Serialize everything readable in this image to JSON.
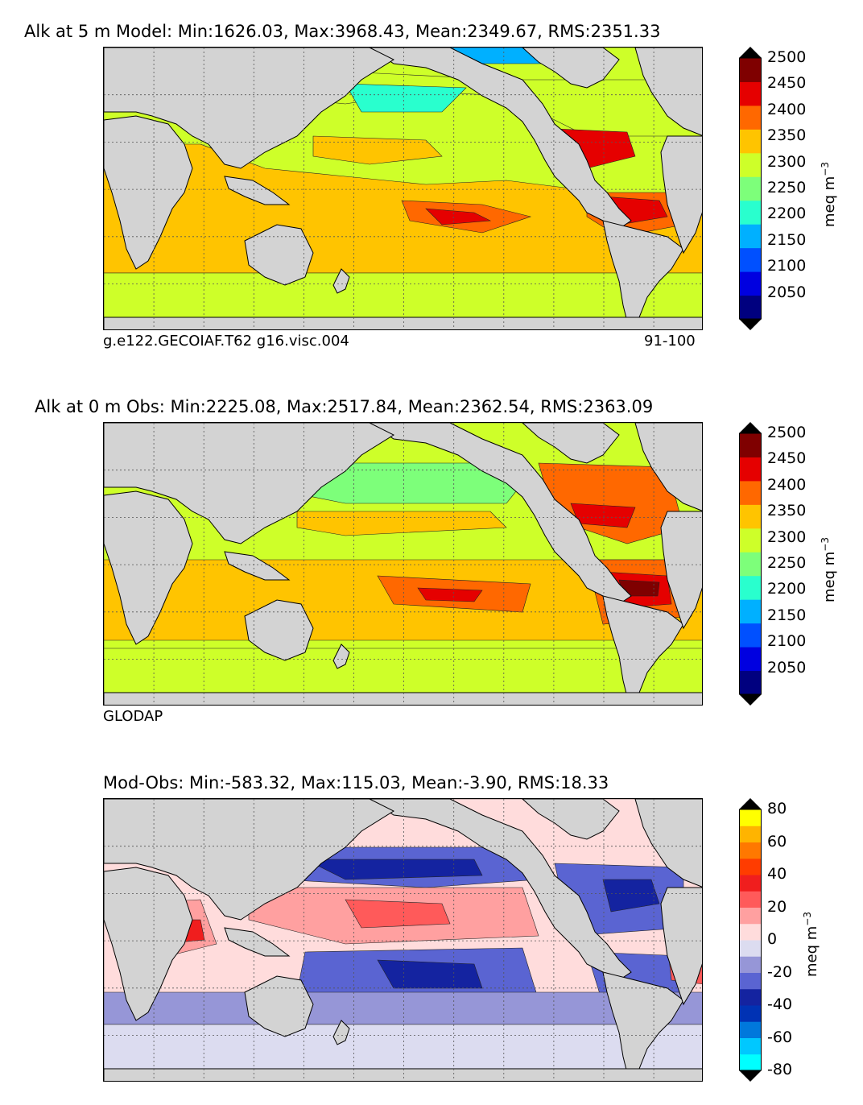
{
  "chart_data": [
    {
      "type": "heatmap",
      "title": "Alk at 5 m Model: Min:1626.03, Max:3968.43, Mean:2349.67, RMS:2351.33",
      "subtitle_left": "g.e122.GECOIAF.T62 g16.visc.004",
      "subtitle_right": "91-100",
      "colorbar": {
        "ticks": [
          "2500",
          "2450",
          "2400",
          "2350",
          "2300",
          "2250",
          "2200",
          "2150",
          "2100",
          "2050"
        ],
        "levels": [
          2000,
          2050,
          2100,
          2150,
          2200,
          2250,
          2300,
          2350,
          2400,
          2450,
          2500
        ],
        "colors": [
          "#00007f",
          "#0000e0",
          "#0050ff",
          "#00b0ff",
          "#29ffce",
          "#7dff7a",
          "#ceff29",
          "#ffc400",
          "#ff6800",
          "#e50000",
          "#7f0000"
        ],
        "unit": "meq m",
        "unit_exp": "−3"
      }
    },
    {
      "type": "heatmap",
      "title": "Alk at 0 m Obs: Min:2225.08, Max:2517.84, Mean:2362.54, RMS:2363.09",
      "subtitle_left": "GLODAP",
      "colorbar": {
        "ticks": [
          "2500",
          "2450",
          "2400",
          "2350",
          "2300",
          "2250",
          "2200",
          "2150",
          "2100",
          "2050"
        ],
        "levels": [
          2000,
          2050,
          2100,
          2150,
          2200,
          2250,
          2300,
          2350,
          2400,
          2450,
          2500
        ],
        "colors": [
          "#00007f",
          "#0000e0",
          "#0050ff",
          "#00b0ff",
          "#29ffce",
          "#7dff7a",
          "#ceff29",
          "#ffc400",
          "#ff6800",
          "#e50000",
          "#7f0000"
        ],
        "unit": "meq m",
        "unit_exp": "−3"
      }
    },
    {
      "type": "heatmap",
      "title": "Mod-Obs: Min:-583.32, Max:115.03, Mean:-3.90, RMS:18.33",
      "colorbar": {
        "ticks": [
          "80",
          "60",
          "40",
          "20",
          "0",
          "-20",
          "-40",
          "-60",
          "-80"
        ],
        "levels": [
          -80,
          -70,
          -60,
          -50,
          -40,
          -30,
          -20,
          -10,
          0,
          10,
          20,
          30,
          40,
          50,
          60,
          70,
          80
        ],
        "colors": [
          "#00ffff",
          "#00c8ff",
          "#0078dc",
          "#0032b4",
          "#1423a0",
          "#5a64d2",
          "#9696d7",
          "#dcdcf0",
          "#ffdcdc",
          "#ffa0a0",
          "#ff5a5a",
          "#f01e1e",
          "#ff3c00",
          "#ff7800",
          "#ffb400",
          "#ffff00"
        ],
        "unit": "meq m",
        "unit_exp": "−3"
      }
    }
  ],
  "colors": {
    "land": "#d3d3d3",
    "grid": "#555555",
    "border": "#000000"
  }
}
